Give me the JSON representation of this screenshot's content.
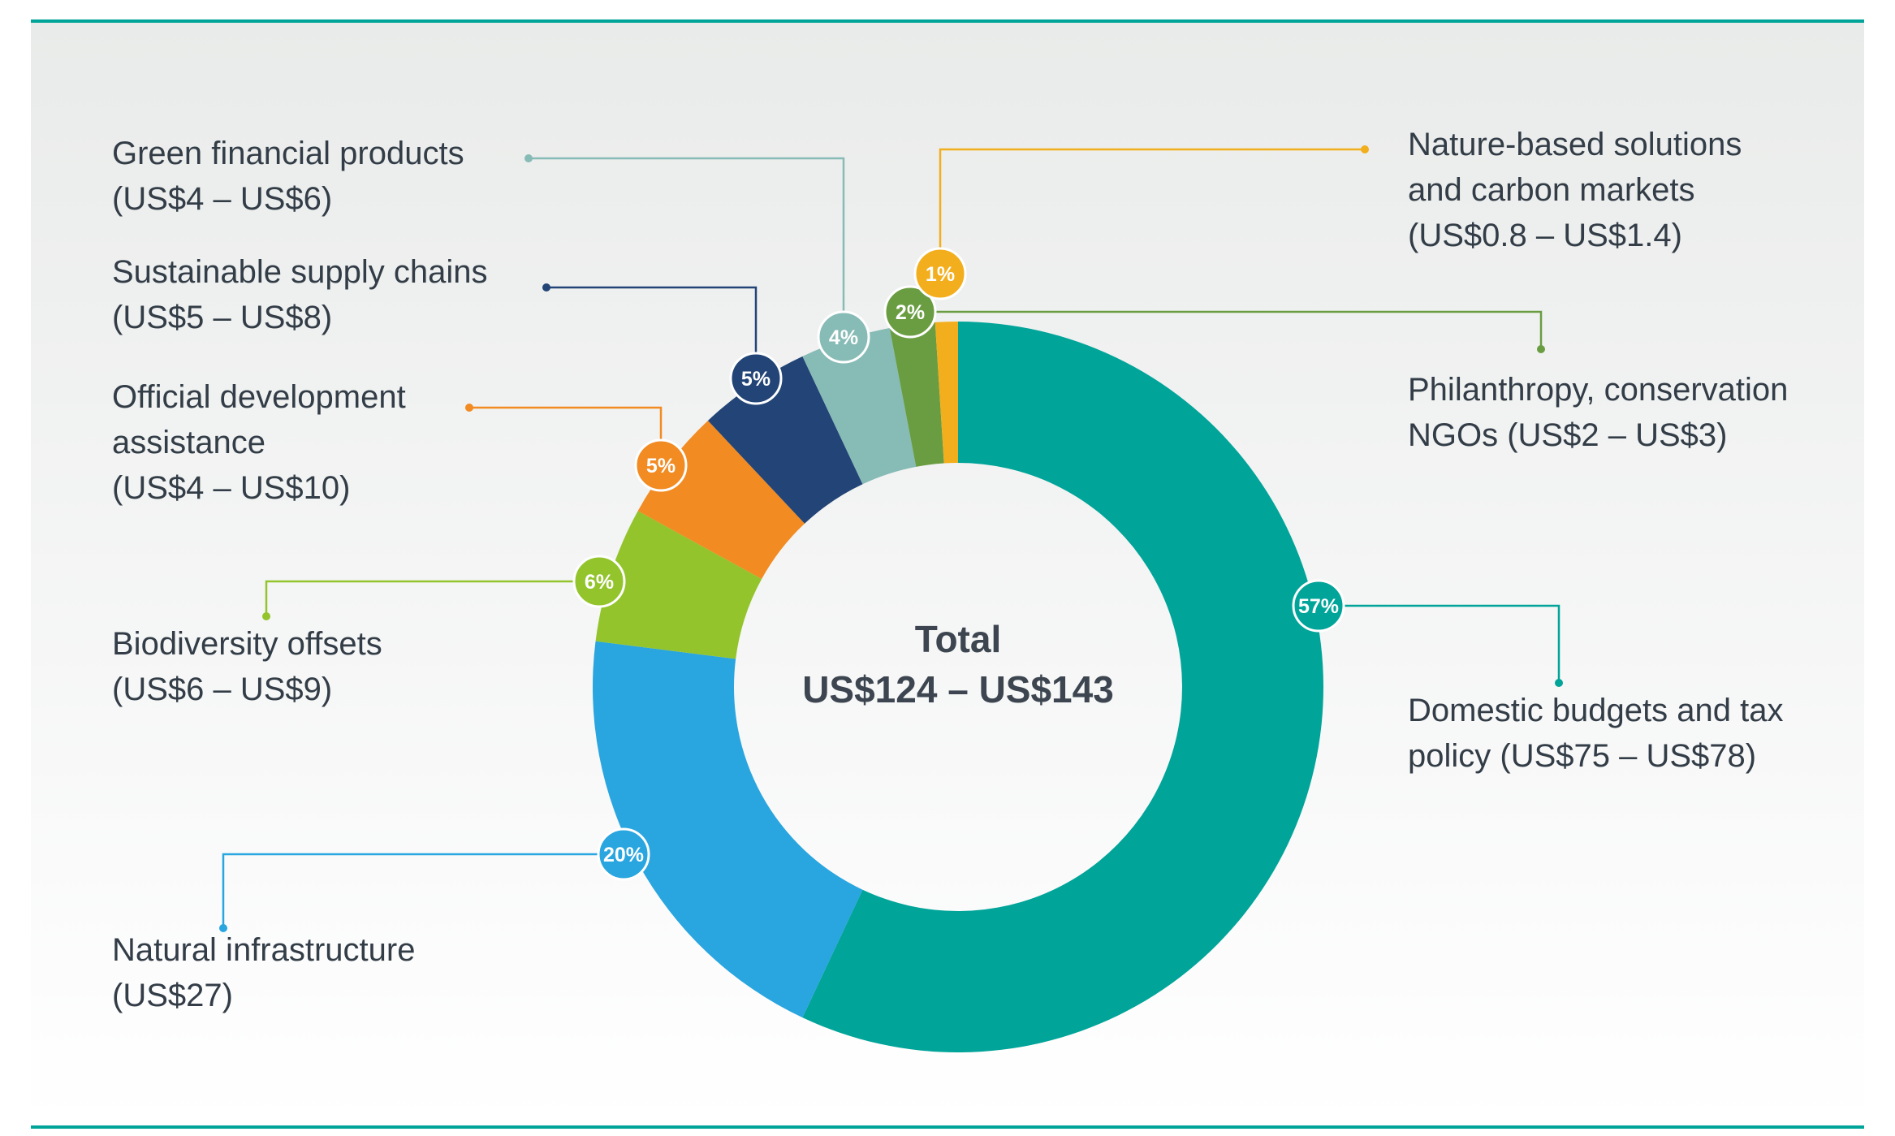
{
  "chart_data": {
    "type": "pie",
    "variant": "donut",
    "center_label": {
      "line1": "Total",
      "line2": "US$124 – US$143"
    },
    "slices": [
      {
        "id": "domestic",
        "label_lines": [
          "Domestic budgets and tax",
          "policy (US$75 – US$78)"
        ],
        "percent": 57,
        "percent_label": "57%",
        "color": "#00A499"
      },
      {
        "id": "natural-infrastructure",
        "label_lines": [
          "Natural infrastructure",
          "(US$27)"
        ],
        "percent": 20,
        "percent_label": "20%",
        "color": "#29A5DF"
      },
      {
        "id": "biodiversity-offsets",
        "label_lines": [
          "Biodiversity offsets",
          "(US$6 – US$9)"
        ],
        "percent": 6,
        "percent_label": "6%",
        "color": "#93C42C"
      },
      {
        "id": "official-development",
        "label_lines": [
          "Official development",
          "assistance",
          "(US$4 – US$10)"
        ],
        "percent": 5,
        "percent_label": "5%",
        "color": "#F18B22"
      },
      {
        "id": "supply-chains",
        "label_lines": [
          "Sustainable supply chains",
          "(US$5 – US$8)"
        ],
        "percent": 5,
        "percent_label": "5%",
        "color": "#224476"
      },
      {
        "id": "green-financial",
        "label_lines": [
          "Green financial products",
          "(US$4 – US$6)"
        ],
        "percent": 4,
        "percent_label": "4%",
        "color": "#87BBB6"
      },
      {
        "id": "philanthropy",
        "label_lines": [
          "Philanthropy, conservation",
          "NGOs (US$2 – US$3)"
        ],
        "percent": 2,
        "percent_label": "2%",
        "color": "#6A9D42"
      },
      {
        "id": "nature-based",
        "label_lines": [
          "Nature-based solutions",
          "and carbon markets",
          "(US$0.8 – US$1.4)"
        ],
        "percent": 1,
        "percent_label": "1%",
        "color": "#F2AE1C"
      }
    ],
    "legend": "none",
    "grid": false
  },
  "colors": {
    "rule": "#00A499",
    "text": "#333d47",
    "background_top": "#e9ebea",
    "background_bottom": "#ffffff"
  }
}
